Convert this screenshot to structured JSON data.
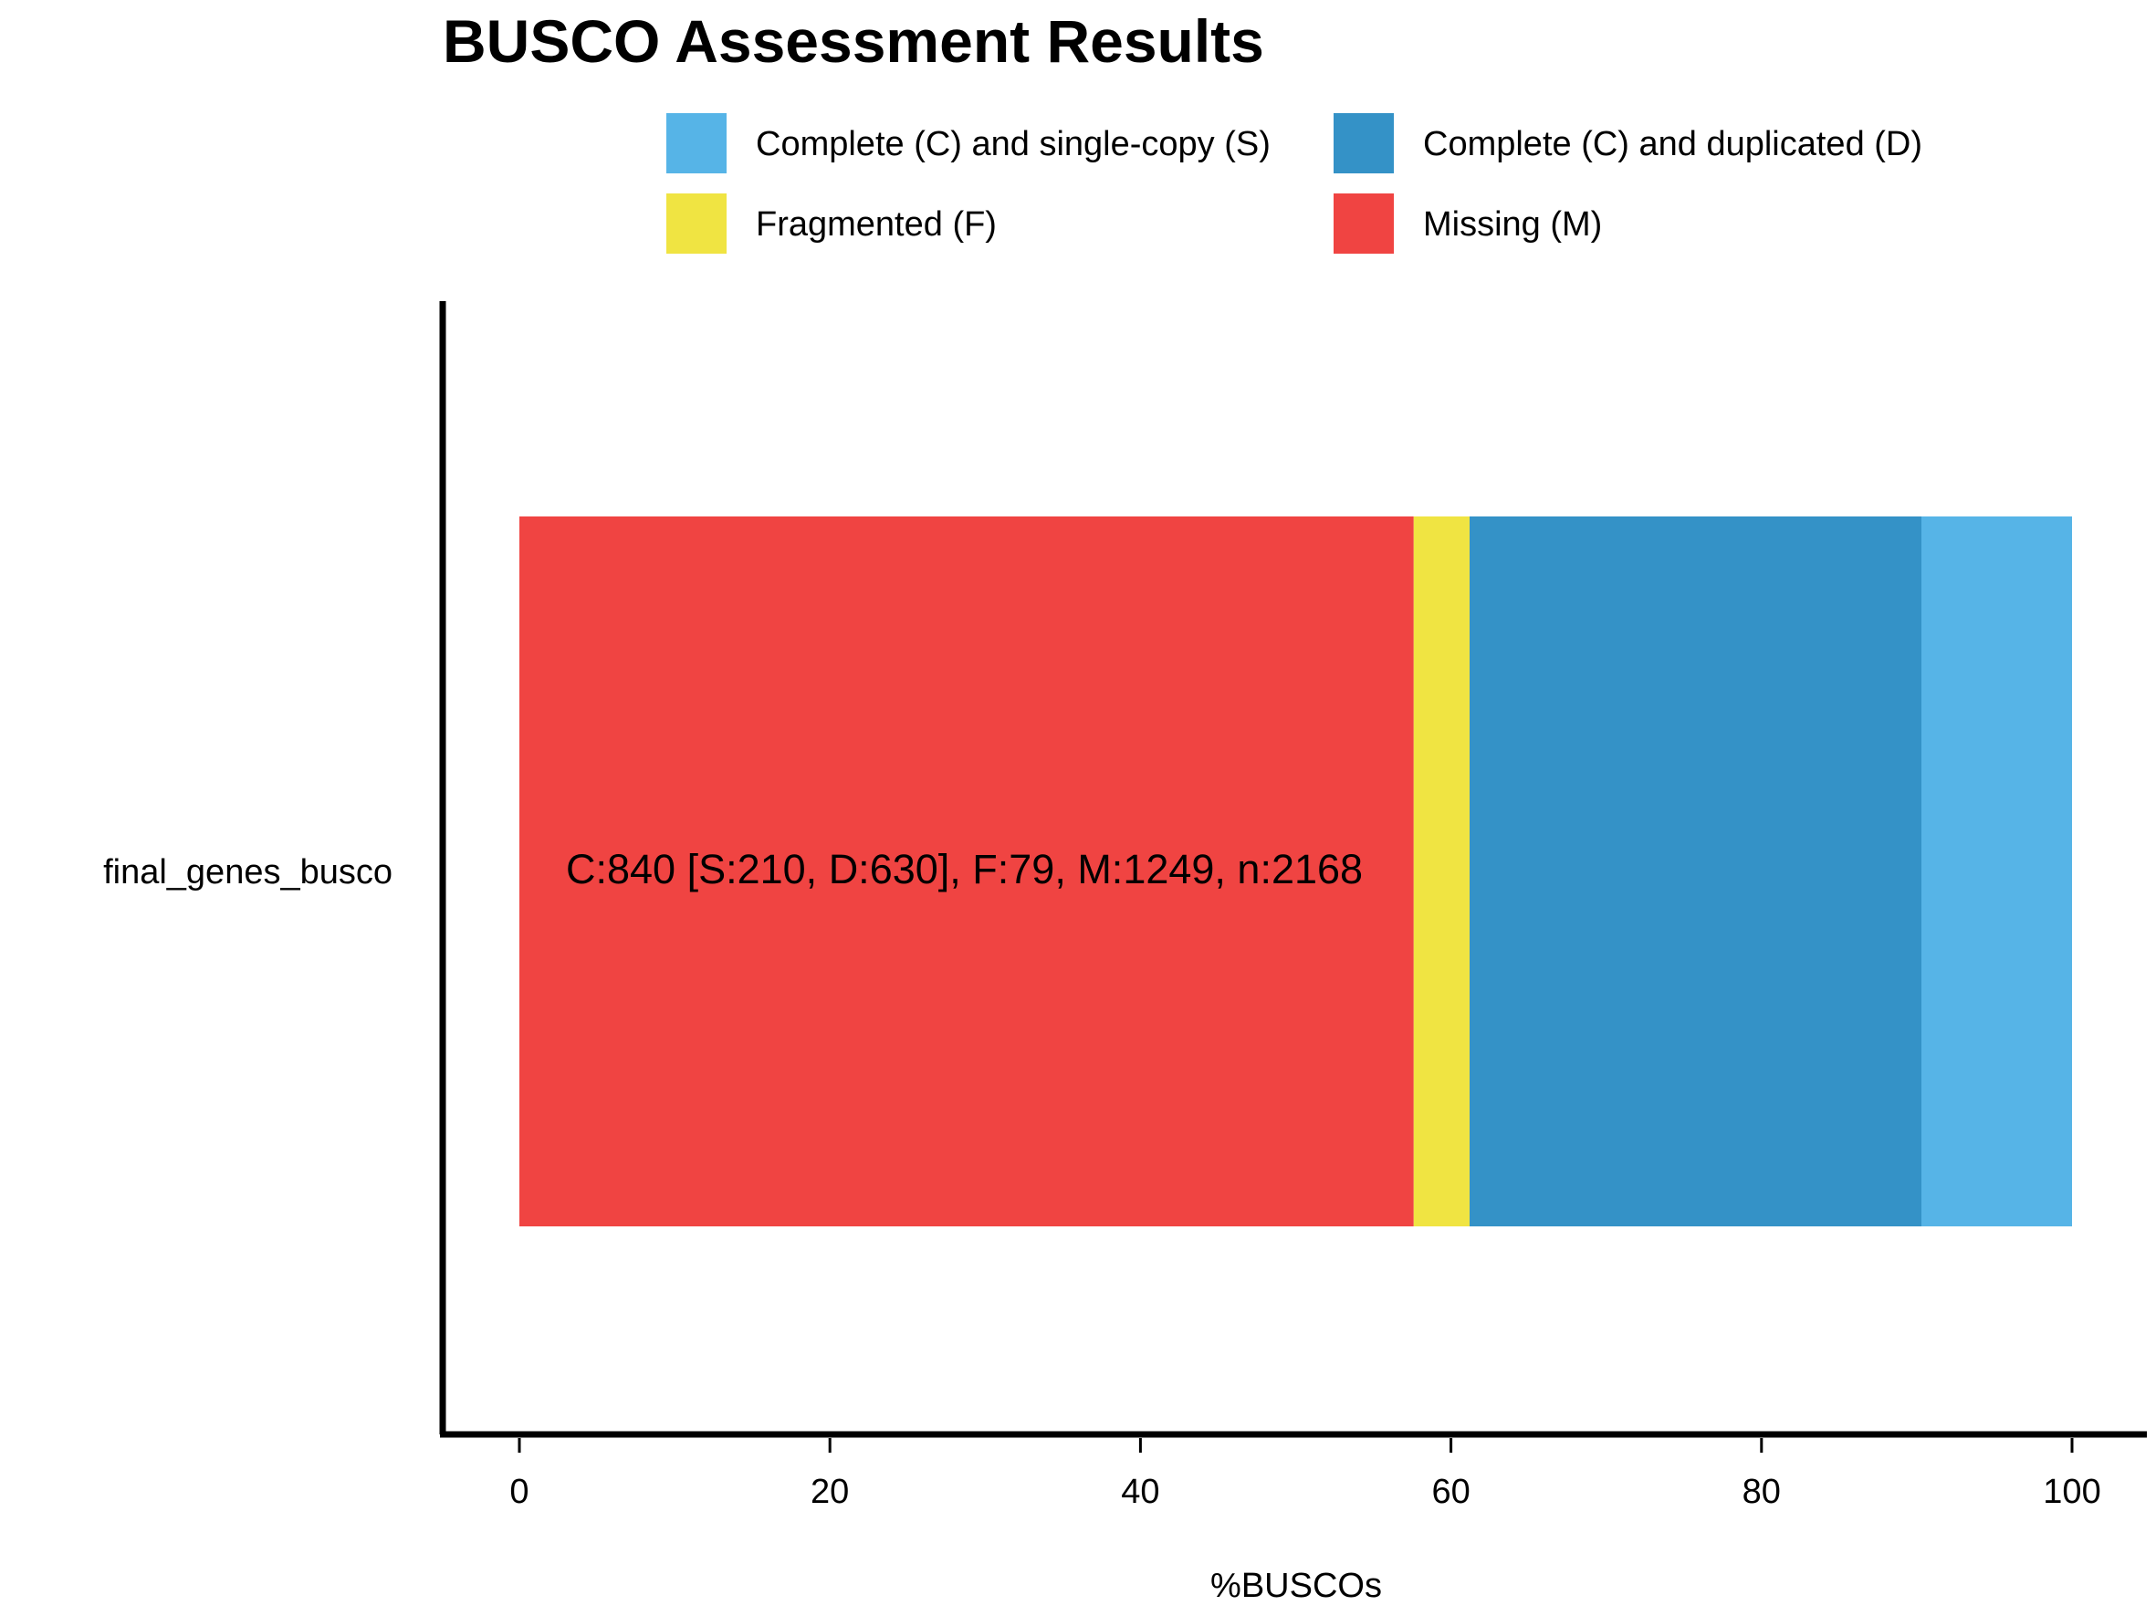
{
  "chart_data": {
    "type": "bar",
    "orientation": "horizontal",
    "stacked": true,
    "title": "BUSCO Assessment Results",
    "xlabel": "%BUSCOs",
    "ylabel": "",
    "xlim": [
      0,
      100
    ],
    "x_ticks": [
      0,
      20,
      40,
      60,
      80,
      100
    ],
    "categories": [
      "final_genes_busco"
    ],
    "series": [
      {
        "name": "Missing (M)",
        "color": "#F04442",
        "values": [
          57.6
        ]
      },
      {
        "name": "Fragmented (F)",
        "color": "#F0E442",
        "values": [
          3.6
        ]
      },
      {
        "name": "Complete (C) and duplicated (D)",
        "color": "#3492C7",
        "values": [
          29.1
        ]
      },
      {
        "name": "Complete (C) and single-copy (S)",
        "color": "#56B4E7",
        "values": [
          9.7
        ]
      }
    ],
    "legend": {
      "placement": "top",
      "entries": [
        {
          "name": "Complete (C) and single-copy (S)",
          "color": "#56B4E7"
        },
        {
          "name": "Complete (C) and duplicated (D)",
          "color": "#3492C7"
        },
        {
          "name": "Fragmented (F)",
          "color": "#F0E442"
        },
        {
          "name": "Missing (M)",
          "color": "#F04442"
        }
      ]
    },
    "annotations": [
      "C:840 [S:210, D:630], F:79, M:1249, n:2168"
    ],
    "grid": false
  }
}
